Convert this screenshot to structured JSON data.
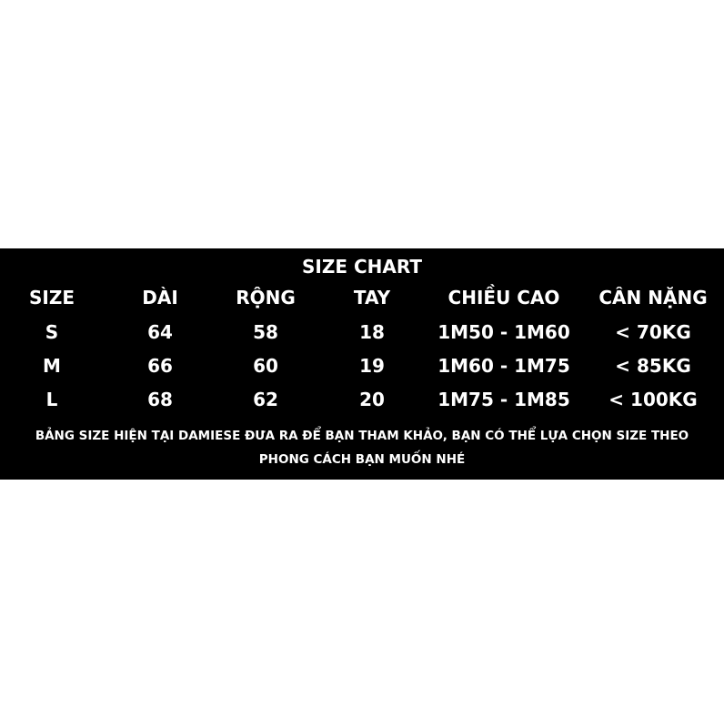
{
  "title": "SIZE CHART",
  "table": {
    "header": [
      "SIZE",
      "DÀI",
      "RỘNG",
      "TAY",
      "CHIỀU CAO",
      "CÂN NẶNG"
    ],
    "rows": [
      [
        "S",
        "64",
        "58",
        "18",
        "1M50 - 1M60",
        "< 70KG"
      ],
      [
        "M",
        "66",
        "60",
        "19",
        "1M60 - 1M75",
        "< 85KG"
      ],
      [
        "L",
        "68",
        "62",
        "20",
        "1M75 - 1M85",
        "< 100KG"
      ]
    ]
  },
  "note": [
    "BẢNG SIZE HIỆN TẠI DAMIESE ĐƯA RA ĐỂ BẠN THAM KHẢO, BẠN CÓ THỂ LỰA CHỌN SIZE THEO",
    "PHONG CÁCH BẠN MUỐN NHÉ"
  ]
}
